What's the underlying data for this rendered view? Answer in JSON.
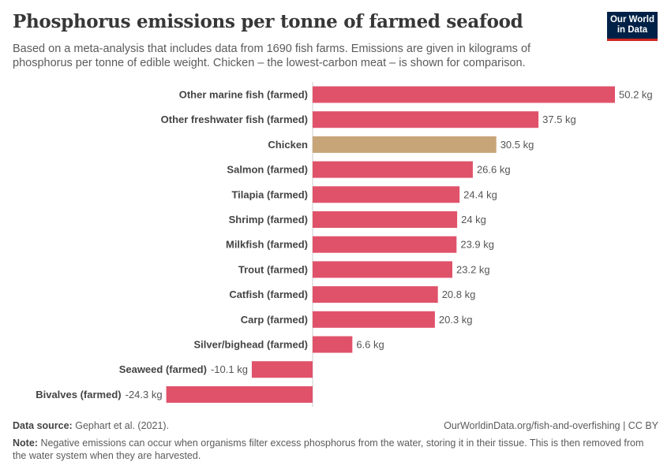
{
  "header": {
    "title": "Phosphorus emissions per tonne of farmed seafood",
    "subtitle": "Based on a meta-analysis that includes data from 1690 fish farms. Emissions are given in kilograms of phosphorus per tonne of edible weight. Chicken – the lowest-carbon meat – is shown for comparison.",
    "logo": "Our World in Data"
  },
  "footer": {
    "source_label": "Data source:",
    "source": "Gephart et al. (2021).",
    "url": "OurWorldinData.org/fish-and-overfishing | CC BY",
    "note_label": "Note:",
    "note": "Negative emissions can occur when organisms filter excess phosphorus from the water, storing it in their tissue. This is then removed from the water system when they are harvested."
  },
  "chart_data": {
    "type": "bar",
    "orientation": "horizontal",
    "unit": "kg",
    "categories": [
      "Other marine fish (farmed)",
      "Other freshwater fish (farmed)",
      "Chicken",
      "Salmon (farmed)",
      "Tilapia (farmed)",
      "Shrimp (farmed)",
      "Milkfish (farmed)",
      "Trout (farmed)",
      "Catfish (farmed)",
      "Carp (farmed)",
      "Silver/bighead (farmed)",
      "Seaweed (farmed)",
      "Bivalves (farmed)"
    ],
    "values": [
      50.2,
      37.5,
      30.5,
      26.6,
      24.4,
      24,
      23.9,
      23.2,
      20.8,
      20.3,
      6.6,
      -10.1,
      -24.3
    ],
    "labels": [
      "50.2 kg",
      "37.5 kg",
      "30.5 kg",
      "26.6 kg",
      "24.4 kg",
      "24 kg",
      "23.9 kg",
      "23.2 kg",
      "20.8 kg",
      "20.3 kg",
      "6.6 kg",
      "-10.1 kg",
      "-24.3 kg"
    ],
    "colors": {
      "seafood": "#e0526a",
      "Chicken": "#c8a479"
    }
  }
}
